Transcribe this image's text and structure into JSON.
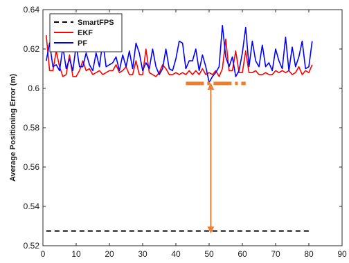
{
  "chart_data": {
    "type": "line",
    "title": "",
    "xlabel": "",
    "ylabel": "Average Positioning Error (m)",
    "xlim": [
      0,
      90
    ],
    "ylim": [
      0.52,
      0.64
    ],
    "xticks": [
      0,
      10,
      20,
      30,
      40,
      50,
      60,
      70,
      80,
      90
    ],
    "yticks": [
      0.52,
      0.54,
      0.56,
      0.58,
      0.6,
      0.62,
      0.64
    ],
    "xtick_labels": [
      "0",
      "10",
      "20",
      "30",
      "40",
      "50",
      "60",
      "70",
      "80",
      "90"
    ],
    "ytick_labels": [
      "0.52",
      "0.54",
      "0.56",
      "0.58",
      "0.6",
      "0.62",
      "0.64"
    ],
    "grid": false,
    "legend_position": "top-left",
    "x": [
      1,
      2,
      3,
      4,
      5,
      6,
      7,
      8,
      9,
      10,
      11,
      12,
      13,
      14,
      15,
      16,
      17,
      18,
      19,
      20,
      21,
      22,
      23,
      24,
      25,
      26,
      27,
      28,
      29,
      30,
      31,
      32,
      33,
      34,
      35,
      36,
      37,
      38,
      39,
      40,
      41,
      42,
      43,
      44,
      45,
      46,
      47,
      48,
      49,
      50,
      51,
      52,
      53,
      54,
      55,
      56,
      57,
      58,
      59,
      60,
      61,
      62,
      63,
      64,
      65,
      66,
      67,
      68,
      69,
      70,
      71,
      72,
      73,
      74,
      75,
      76,
      77,
      78,
      79,
      80,
      81
    ],
    "series": [
      {
        "name": "SmartFPS",
        "color": "#000000",
        "style": "dashed",
        "values": [
          0.5275,
          0.5275,
          0.5275,
          0.5275,
          0.5275,
          0.5275,
          0.5275,
          0.5275,
          0.5275,
          0.5275,
          0.5275,
          0.5275,
          0.5275,
          0.5275,
          0.5275,
          0.5275,
          0.5275,
          0.5275,
          0.5275,
          0.5275,
          0.5275,
          0.5275,
          0.5275,
          0.5275,
          0.5275,
          0.5275,
          0.5275,
          0.5275,
          0.5275,
          0.5275,
          0.5275,
          0.5275,
          0.5275,
          0.5275,
          0.5275,
          0.5275,
          0.5275,
          0.5275,
          0.5275,
          0.5275,
          0.5275,
          0.5275,
          0.5275,
          0.5275,
          0.5275,
          0.5275,
          0.5275,
          0.5275,
          0.5275,
          0.5275,
          0.5275,
          0.5275,
          0.5275,
          0.5275,
          0.5275,
          0.5275,
          0.5275,
          0.5275,
          0.5275,
          0.5275,
          0.5275,
          0.5275,
          0.5275,
          0.5275,
          0.5275,
          0.5275,
          0.5275,
          0.5275,
          0.5275,
          0.5275,
          0.5275,
          0.5275,
          0.5275,
          0.5275,
          0.5275,
          0.5275,
          0.5275,
          0.5275,
          0.5275,
          0.5275,
          0.5275
        ]
      },
      {
        "name": "EKF",
        "color": "#ff0000",
        "style": "solid",
        "values": [
          0.627,
          0.609,
          0.609,
          0.619,
          0.611,
          0.606,
          0.607,
          0.617,
          0.606,
          0.606,
          0.609,
          0.614,
          0.609,
          0.61,
          0.607,
          0.608,
          0.609,
          0.607,
          0.608,
          0.609,
          0.609,
          0.612,
          0.608,
          0.609,
          0.611,
          0.607,
          0.607,
          0.614,
          0.607,
          0.607,
          0.62,
          0.608,
          0.607,
          0.606,
          0.608,
          0.612,
          0.61,
          0.607,
          0.607,
          0.608,
          0.607,
          0.608,
          0.607,
          0.609,
          0.607,
          0.609,
          0.607,
          0.61,
          0.607,
          0.608,
          0.607,
          0.609,
          0.606,
          0.61,
          0.625,
          0.609,
          0.609,
          0.619,
          0.608,
          0.608,
          0.619,
          0.608,
          0.608,
          0.609,
          0.607,
          0.607,
          0.608,
          0.607,
          0.607,
          0.609,
          0.608,
          0.609,
          0.608,
          0.609,
          0.607,
          0.608,
          0.611,
          0.607,
          0.609,
          0.608,
          0.612
        ]
      },
      {
        "name": "PF",
        "color": "#0000ff",
        "style": "solid",
        "values": [
          0.614,
          0.623,
          0.611,
          0.612,
          0.609,
          0.621,
          0.61,
          0.615,
          0.609,
          0.622,
          0.611,
          0.611,
          0.618,
          0.612,
          0.609,
          0.618,
          0.611,
          0.624,
          0.611,
          0.612,
          0.613,
          0.616,
          0.609,
          0.617,
          0.611,
          0.619,
          0.61,
          0.623,
          0.618,
          0.609,
          0.613,
          0.61,
          0.62,
          0.611,
          0.607,
          0.61,
          0.62,
          0.61,
          0.609,
          0.615,
          0.624,
          0.623,
          0.61,
          0.614,
          0.614,
          0.62,
          0.609,
          0.617,
          0.611,
          0.603,
          0.606,
          0.608,
          0.611,
          0.632,
          0.616,
          0.611,
          0.616,
          0.606,
          0.609,
          0.618,
          0.631,
          0.611,
          0.624,
          0.614,
          0.611,
          0.622,
          0.611,
          0.613,
          0.609,
          0.62,
          0.614,
          0.61,
          0.626,
          0.609,
          0.621,
          0.611,
          0.616,
          0.624,
          0.61,
          0.611,
          0.624
        ]
      }
    ],
    "annotations": {
      "color": "#ed7d31",
      "dashed_segment": {
        "x": [
          43,
          61
        ],
        "y": 0.6025
      },
      "arrow": {
        "x": 50.5,
        "y_from": 0.601,
        "y_to": 0.528
      }
    }
  }
}
